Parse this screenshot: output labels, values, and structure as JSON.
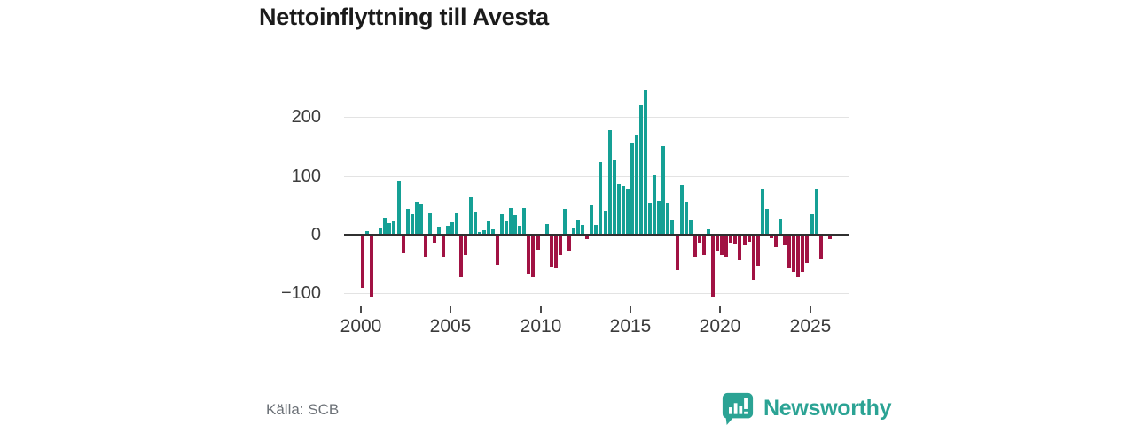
{
  "title": "Nettoinflyttning till Avesta",
  "source": "Källa: SCB",
  "logo": {
    "brand": "Newsworthy"
  },
  "colors": {
    "positive_bar": "#15a095",
    "negative_bar": "#a11243",
    "zero_line": "#303030",
    "gridline": "#e3e3e3",
    "brand_teal": "#2ba394"
  },
  "chart_data": {
    "type": "bar",
    "title": "Nettoinflyttning till Avesta",
    "xlabel": "",
    "ylabel": "",
    "ylim": [
      -130,
      270
    ],
    "grid": "horizontal",
    "legend": "none",
    "frequency": "quarterly",
    "y_ticks": [
      200,
      100,
      0,
      -100
    ],
    "y_tick_labels": [
      "200",
      "100",
      "0",
      "−100"
    ],
    "x_ticks": [
      "2000",
      "2005",
      "2010",
      "2015",
      "2020",
      "2025"
    ],
    "categories": [
      "2000Q1",
      "2000Q2",
      "2000Q3",
      "2000Q4",
      "2001Q1",
      "2001Q2",
      "2001Q3",
      "2001Q4",
      "2002Q1",
      "2002Q2",
      "2002Q3",
      "2002Q4",
      "2003Q1",
      "2003Q2",
      "2003Q3",
      "2003Q4",
      "2004Q1",
      "2004Q2",
      "2004Q3",
      "2004Q4",
      "2005Q1",
      "2005Q2",
      "2005Q3",
      "2005Q4",
      "2006Q1",
      "2006Q2",
      "2006Q3",
      "2006Q4",
      "2007Q1",
      "2007Q2",
      "2007Q3",
      "2007Q4",
      "2008Q1",
      "2008Q2",
      "2008Q3",
      "2008Q4",
      "2009Q1",
      "2009Q2",
      "2009Q3",
      "2009Q4",
      "2010Q1",
      "2010Q2",
      "2010Q3",
      "2010Q4",
      "2011Q1",
      "2011Q2",
      "2011Q3",
      "2011Q4",
      "2012Q1",
      "2012Q2",
      "2012Q3",
      "2012Q4",
      "2013Q1",
      "2013Q2",
      "2013Q3",
      "2013Q4",
      "2014Q1",
      "2014Q2",
      "2014Q3",
      "2014Q4",
      "2015Q1",
      "2015Q2",
      "2015Q3",
      "2015Q4",
      "2016Q1",
      "2016Q2",
      "2016Q3",
      "2016Q4",
      "2017Q1",
      "2017Q2",
      "2017Q3",
      "2017Q4",
      "2018Q1",
      "2018Q2",
      "2018Q3",
      "2018Q4",
      "2019Q1",
      "2019Q2",
      "2019Q3",
      "2019Q4",
      "2020Q1",
      "2020Q2",
      "2020Q3",
      "2020Q4",
      "2021Q1",
      "2021Q2",
      "2021Q3",
      "2021Q4",
      "2022Q1",
      "2022Q2",
      "2022Q3",
      "2022Q4",
      "2023Q1",
      "2023Q2",
      "2023Q3",
      "2023Q4",
      "2024Q1",
      "2024Q2",
      "2024Q3",
      "2024Q4",
      "2025Q1",
      "2025Q2",
      "2025Q3",
      "2025Q4",
      "2026Q1"
    ],
    "values": [
      -90,
      6,
      -106,
      0,
      10,
      28,
      19,
      23,
      92,
      -32,
      43,
      35,
      56,
      53,
      -38,
      36,
      -14,
      14,
      -38,
      15,
      21,
      38,
      -72,
      -35,
      65,
      39,
      5,
      8,
      22,
      9,
      -51,
      35,
      22,
      45,
      33,
      15,
      45,
      -68,
      -73,
      -25,
      0,
      18,
      -55,
      -57,
      -34,
      43,
      -29,
      11,
      25,
      17,
      -8,
      51,
      16,
      124,
      40,
      178,
      127,
      86,
      83,
      79,
      156,
      170,
      220,
      246,
      55,
      101,
      57,
      151,
      55,
      25,
      -61,
      84,
      56,
      26,
      -38,
      -14,
      -35,
      9,
      -106,
      -28,
      -35,
      -38,
      -13,
      -17,
      -44,
      -18,
      -12,
      -77,
      -53,
      79,
      44,
      -6,
      -21,
      27,
      -18,
      -58,
      -63,
      -72,
      -63,
      -49,
      34,
      79,
      -41,
      0,
      -8
    ]
  }
}
